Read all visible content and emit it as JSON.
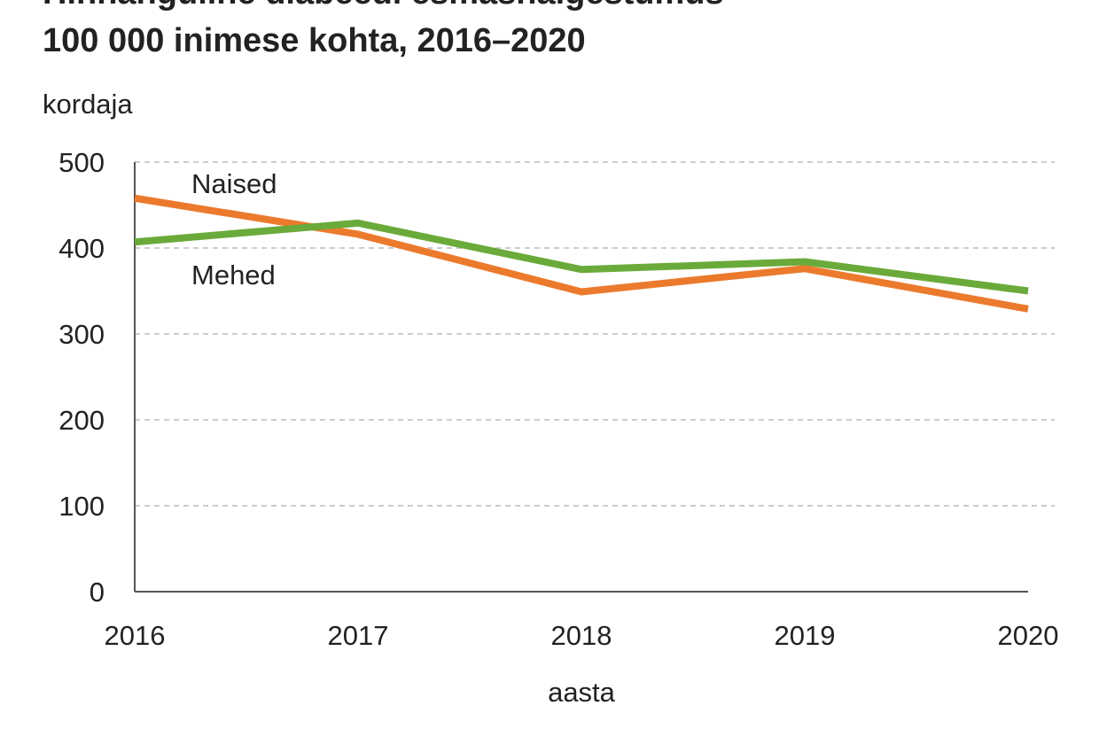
{
  "chart_data": {
    "type": "line",
    "title": [
      "Hinnanguline diabeedi esmashaigestumus",
      "100 000 inimese kohta, 2016–2020"
    ],
    "y_label": "kordaja",
    "x_label": "aasta",
    "categories": [
      "2016",
      "2017",
      "2018",
      "2019",
      "2020"
    ],
    "series": [
      {
        "name": "Naised",
        "color": "#ec7a2d",
        "values": [
          458,
          416,
          349,
          376,
          329
        ]
      },
      {
        "name": "Mehed",
        "color": "#6aaa3a",
        "values": [
          407,
          429,
          375,
          384,
          350
        ]
      }
    ],
    "ylim": [
      0,
      500
    ],
    "yticks": [
      0,
      100,
      200,
      300,
      400,
      500
    ],
    "grid": true
  }
}
